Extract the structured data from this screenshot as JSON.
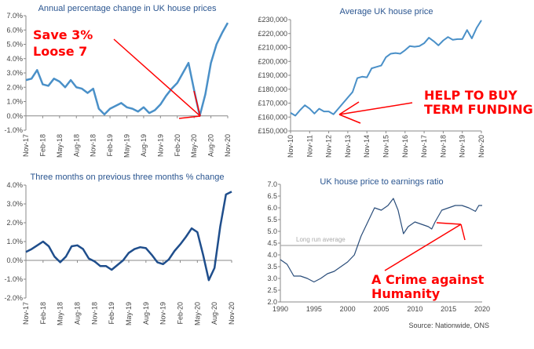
{
  "chart_data": [
    {
      "type": "line",
      "title": "Annual percentage change in UK house prices",
      "ylim": [
        -1.0,
        7.0
      ],
      "yticks": [
        "-1.0%",
        "0.0%",
        "1.0%",
        "2.0%",
        "3.0%",
        "4.0%",
        "5.0%",
        "6.0%",
        "7.0%"
      ],
      "ytick_values": [
        -1,
        0,
        1,
        2,
        3,
        4,
        5,
        6,
        7
      ],
      "xtick_labels": [
        "Nov-17",
        "Feb-18",
        "May-18",
        "Aug-18",
        "Nov-18",
        "Feb-19",
        "May-19",
        "Aug-19",
        "Nov-19",
        "Feb-20",
        "May-20",
        "Aug-20",
        "Nov-20"
      ],
      "x_range": [
        "Nov-17",
        "Nov-20"
      ],
      "frequency": "monthly",
      "values": [
        2.5,
        2.6,
        3.2,
        2.2,
        2.1,
        2.6,
        2.4,
        2.0,
        2.5,
        2.0,
        1.9,
        1.6,
        1.9,
        0.5,
        0.1,
        0.5,
        0.7,
        0.9,
        0.6,
        0.5,
        0.3,
        0.6,
        0.2,
        0.4,
        0.8,
        1.4,
        1.9,
        2.3,
        3.0,
        3.7,
        1.8,
        0.0,
        1.5,
        3.7,
        5.0,
        5.8,
        6.5
      ],
      "color": "#4a90c8",
      "annotations": [
        "Save 3%",
        "Loose 7"
      ]
    },
    {
      "type": "line",
      "title": "Average UK house price",
      "ylim": [
        150000,
        230000
      ],
      "yticks": [
        "£150,000",
        "£160,000",
        "£170,000",
        "£180,000",
        "£190,000",
        "£200,000",
        "£210,000",
        "£220,000",
        "£230,000"
      ],
      "ytick_values": [
        150000,
        160000,
        170000,
        180000,
        190000,
        200000,
        210000,
        220000,
        230000
      ],
      "xtick_labels": [
        "Nov-10",
        "Nov-11",
        "Nov-12",
        "Nov-13",
        "Nov-14",
        "Nov-15",
        "Nov-16",
        "Nov-17",
        "Nov-18",
        "Nov-19",
        "Nov-20"
      ],
      "x_range": [
        "Nov-10",
        "Nov-20"
      ],
      "frequency": "quarterly",
      "values": [
        163000,
        161000,
        165000,
        168500,
        166000,
        162500,
        166000,
        164000,
        164000,
        162000,
        166000,
        170000,
        174000,
        178000,
        188000,
        189000,
        188500,
        195000,
        196000,
        197000,
        203000,
        205500,
        206000,
        205500,
        208000,
        211000,
        210500,
        211000,
        213000,
        217000,
        214500,
        211500,
        215000,
        217500,
        215500,
        216000,
        216000,
        222500,
        216500,
        224000,
        229500
      ],
      "color": "#4a90c8",
      "annotations": [
        "HELP TO BUY",
        "TERM FUNDING"
      ]
    },
    {
      "type": "line",
      "title": "Three months on previous three months % change",
      "ylim": [
        -2.0,
        4.0
      ],
      "yticks": [
        "-2.0%",
        "-1.0%",
        "0.0%",
        "1.0%",
        "2.0%",
        "3.0%",
        "4.0%"
      ],
      "ytick_values": [
        -2,
        -1,
        0,
        1,
        2,
        3,
        4
      ],
      "xtick_labels": [
        "Nov-17",
        "Feb-18",
        "May-18",
        "Aug-18",
        "Nov-18",
        "Feb-19",
        "May-19",
        "Aug-19",
        "Nov-19",
        "Feb-20",
        "May-20",
        "Aug-20",
        "Nov-20"
      ],
      "x_range": [
        "Nov-17",
        "Nov-20"
      ],
      "frequency": "monthly",
      "values": [
        0.45,
        0.6,
        0.8,
        1.0,
        0.75,
        0.2,
        -0.1,
        0.2,
        0.75,
        0.8,
        0.6,
        0.1,
        -0.05,
        -0.3,
        -0.3,
        -0.5,
        -0.25,
        0.0,
        0.4,
        0.6,
        0.7,
        0.65,
        0.3,
        -0.1,
        -0.2,
        0.05,
        0.5,
        0.85,
        1.25,
        1.7,
        1.5,
        0.3,
        -1.05,
        -0.4,
        1.8,
        3.5,
        3.65
      ],
      "color": "#1f4e8c"
    },
    {
      "type": "line",
      "title": "UK house price to earnings ratio",
      "ylim": [
        2.0,
        7.0
      ],
      "xlim": [
        1990,
        2020
      ],
      "yticks": [
        "2.0",
        "2.5",
        "3.0",
        "3.5",
        "4.0",
        "4.5",
        "5.0",
        "5.5",
        "6.0",
        "6.5",
        "7.0"
      ],
      "ytick_values": [
        2.0,
        2.5,
        3.0,
        3.5,
        4.0,
        4.5,
        5.0,
        5.5,
        6.0,
        6.5,
        7.0
      ],
      "xticks": [
        "1990",
        "1995",
        "2000",
        "2005",
        "2010",
        "2015",
        "2020"
      ],
      "xtick_values": [
        1990,
        1995,
        2000,
        2005,
        2010,
        2015,
        2020
      ],
      "x": [
        1990,
        1991,
        1992,
        1993,
        1994,
        1995,
        1996,
        1997,
        1998,
        1999,
        2000,
        2001,
        2002,
        2003,
        2004,
        2005,
        2006,
        2006.8,
        2007.5,
        2008.3,
        2009,
        2010,
        2011,
        2012,
        2012.5,
        2013,
        2014,
        2015,
        2016,
        2017,
        2018,
        2019,
        2019.5,
        2020
      ],
      "y": [
        3.8,
        3.6,
        3.1,
        3.1,
        3.0,
        2.85,
        3.0,
        3.2,
        3.3,
        3.5,
        3.7,
        4.0,
        4.8,
        5.4,
        6.0,
        5.9,
        6.1,
        6.4,
        5.9,
        4.9,
        5.2,
        5.4,
        5.3,
        5.2,
        5.1,
        5.4,
        5.9,
        6.0,
        6.1,
        6.1,
        6.0,
        5.85,
        6.1,
        6.1
      ],
      "reference_line": {
        "label": "Long run average",
        "value": 4.4,
        "color": "#aaaaaa"
      },
      "color": "#2a4d7a",
      "annotations": [
        "A Crime against",
        "Humanity"
      ],
      "source": "Source: Nationwide, ONS"
    }
  ],
  "annotation_color": "#ff0000"
}
